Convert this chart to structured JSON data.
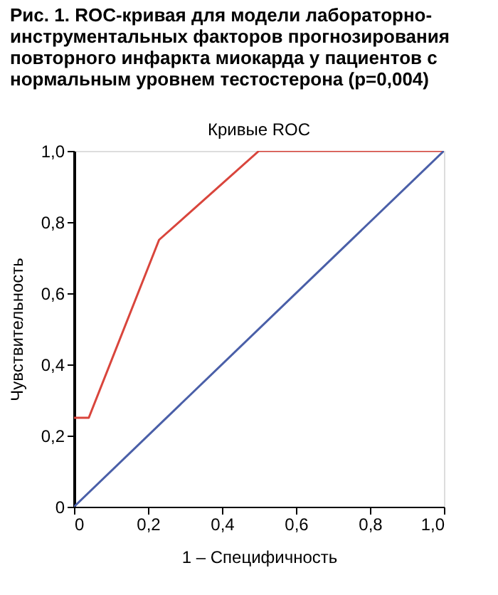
{
  "chart_data": {
    "type": "line",
    "title": "Рис. 1. ROC-кривая для модели лабораторно-инструментальных факторов прогнозирования повторного инфаркта миокарда у пациентов с нормальным уровнем тестостерона (p=0,004)",
    "subtitle": "Кривые ROC",
    "xlabel": "1 – Специфичность",
    "ylabel": "Чувствительность",
    "series": [
      {
        "color": "#d9453c",
        "x": [
          0,
          0.04,
          0.23,
          0.5,
          1
        ],
        "values": [
          0.25,
          0.25,
          0.75,
          1,
          1
        ]
      },
      {
        "color": "#4a5fa8",
        "x": [
          0,
          1
        ],
        "values": [
          0,
          1
        ]
      }
    ],
    "xlim": [
      0,
      1
    ],
    "ylim": [
      0,
      1
    ],
    "xticks": [
      0,
      {
        "value": 0.2,
        "label": "0,2"
      },
      {
        "value": 0.4,
        "label": "0,4"
      },
      {
        "value": 0.6,
        "label": "0,6"
      },
      {
        "value": 0.8,
        "label": "0,8"
      },
      {
        "value": 1,
        "label": "1,0"
      }
    ],
    "yticks": [
      0,
      {
        "value": 0.2,
        "label": "0,2"
      },
      {
        "value": 0.4,
        "label": "0,4"
      },
      {
        "value": 0.6,
        "label": "0,6"
      },
      {
        "value": 0.8,
        "label": "0,8"
      },
      {
        "value": 1,
        "label": "1,0"
      }
    ],
    "grid": false,
    "legend": false,
    "marker": "none",
    "line_style": "solid"
  }
}
